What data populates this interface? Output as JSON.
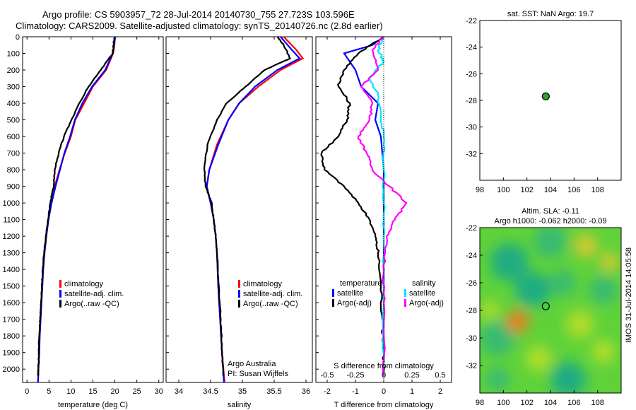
{
  "header": {
    "title_line1": "Argo profile: CS 5903957_72 28-Jul-2014 20140730_755 27.723S 103.596E",
    "title_line2": "Climatology: CARS2009. Satellite-adjusted climatology: synTS_20140726.nc (2.8d earlier)"
  },
  "footer": {
    "stamp": "IMOS 31-Jul-2014 14:05:58"
  },
  "colors": {
    "climatology": "#ff0000",
    "satellite": "#0000ff",
    "argo": "#000000",
    "sat_salinity": "#00e5ff",
    "argo_salinity": "#ff00ff"
  },
  "chart_data": [
    {
      "id": "temperature",
      "type": "line",
      "xlabel": "temperature (deg C)",
      "ylim": [
        2080,
        0
      ],
      "xlim": [
        -1,
        31
      ],
      "xticks": [
        0,
        5,
        10,
        15,
        20,
        25,
        30
      ],
      "yticks": [
        0,
        100,
        200,
        300,
        400,
        500,
        600,
        700,
        800,
        900,
        1000,
        1100,
        1200,
        1300,
        1400,
        1500,
        1600,
        1700,
        1800,
        1900,
        2000
      ],
      "legend": [
        "climatology",
        "satellite-adj. clim.",
        "Argo(..raw -QC)"
      ],
      "series": [
        {
          "name": "climatology",
          "color": "red",
          "points": [
            [
              20,
              0
            ],
            [
              19.9,
              50
            ],
            [
              19.6,
              100
            ],
            [
              18,
              200
            ],
            [
              15,
              300
            ],
            [
              13,
              400
            ],
            [
              11,
              500
            ],
            [
              10,
              600
            ],
            [
              8.6,
              700
            ],
            [
              7.4,
              800
            ],
            [
              6.3,
              900
            ],
            [
              5.4,
              1000
            ],
            [
              4.8,
              1100
            ],
            [
              4.3,
              1200
            ],
            [
              3.9,
              1300
            ],
            [
              3.6,
              1400
            ],
            [
              3.4,
              1500
            ],
            [
              3.2,
              1600
            ],
            [
              3,
              1700
            ],
            [
              2.8,
              1800
            ],
            [
              2.7,
              1900
            ],
            [
              2.6,
              2000
            ],
            [
              2.5,
              2080
            ]
          ]
        },
        {
          "name": "satellite-adj. clim.",
          "color": "blue",
          "points": [
            [
              20.1,
              0
            ],
            [
              19.8,
              50
            ],
            [
              19.5,
              100
            ],
            [
              17.8,
              200
            ],
            [
              14.8,
              300
            ],
            [
              12.6,
              400
            ],
            [
              10.9,
              500
            ],
            [
              9.8,
              600
            ],
            [
              8.5,
              700
            ],
            [
              7.5,
              800
            ],
            [
              6.5,
              900
            ],
            [
              5.6,
              1000
            ],
            [
              4.9,
              1100
            ],
            [
              4.4,
              1200
            ],
            [
              4,
              1300
            ],
            [
              3.7,
              1400
            ],
            [
              3.5,
              1500
            ],
            [
              3.3,
              1600
            ],
            [
              3.1,
              1700
            ],
            [
              2.9,
              1800
            ],
            [
              2.8,
              1900
            ],
            [
              2.6,
              2000
            ],
            [
              2.5,
              2080
            ]
          ]
        },
        {
          "name": "Argo(..raw -QC)",
          "color": "black",
          "points": [
            [
              19.9,
              0
            ],
            [
              19.7,
              50
            ],
            [
              19.5,
              100
            ],
            [
              16.8,
              200
            ],
            [
              14,
              300
            ],
            [
              11.9,
              400
            ],
            [
              10.1,
              500
            ],
            [
              8.4,
              600
            ],
            [
              7.2,
              700
            ],
            [
              6.3,
              800
            ],
            [
              6.1,
              900
            ],
            [
              5.3,
              1000
            ],
            [
              4.8,
              1100
            ],
            [
              4.3,
              1200
            ],
            [
              3.9,
              1300
            ],
            [
              3.6,
              1400
            ],
            [
              3.4,
              1500
            ],
            [
              3.2,
              1600
            ],
            [
              3,
              1700
            ],
            [
              2.8,
              1800
            ],
            [
              2.7,
              1900
            ],
            [
              2.6,
              2000
            ],
            [
              2.5,
              2040
            ]
          ]
        }
      ]
    },
    {
      "id": "salinity",
      "type": "line",
      "xlabel": "salinity",
      "ylim": [
        2080,
        0
      ],
      "xlim": [
        33.8,
        36.1
      ],
      "xticks": [
        34,
        34.5,
        35,
        35.5,
        36
      ],
      "legend": [
        "climatology",
        "satellite-adj. clim.",
        "Argo(..raw -QC)"
      ],
      "annotation": [
        "Argo Australia",
        "PI: Susan Wijffels"
      ],
      "series": [
        {
          "name": "climatology",
          "color": "red",
          "points": [
            [
              35.65,
              0
            ],
            [
              35.85,
              80
            ],
            [
              35.95,
              130
            ],
            [
              35.6,
              200
            ],
            [
              35.25,
              300
            ],
            [
              34.95,
              400
            ],
            [
              34.78,
              500
            ],
            [
              34.6,
              650
            ],
            [
              34.48,
              800
            ],
            [
              34.44,
              900
            ],
            [
              34.5,
              1000
            ],
            [
              34.55,
              1100
            ],
            [
              34.58,
              1200
            ],
            [
              34.6,
              1300
            ],
            [
              34.62,
              1500
            ],
            [
              34.65,
              1700
            ],
            [
              34.68,
              1900
            ],
            [
              34.72,
              2080
            ]
          ]
        },
        {
          "name": "satellite-adj. clim.",
          "color": "blue",
          "points": [
            [
              35.6,
              0
            ],
            [
              35.78,
              80
            ],
            [
              35.9,
              130
            ],
            [
              35.55,
              200
            ],
            [
              35.2,
              300
            ],
            [
              34.95,
              400
            ],
            [
              34.78,
              500
            ],
            [
              34.62,
              650
            ],
            [
              34.48,
              800
            ],
            [
              34.44,
              900
            ],
            [
              34.5,
              1000
            ],
            [
              34.55,
              1100
            ],
            [
              34.58,
              1200
            ],
            [
              34.6,
              1300
            ],
            [
              34.62,
              1500
            ],
            [
              34.65,
              1700
            ],
            [
              34.68,
              1900
            ],
            [
              34.71,
              2080
            ]
          ]
        },
        {
          "name": "Argo(..raw -QC)",
          "color": "black",
          "points": [
            [
              35.55,
              0
            ],
            [
              35.65,
              50
            ],
            [
              35.75,
              130
            ],
            [
              35.35,
              200
            ],
            [
              35.05,
              300
            ],
            [
              34.75,
              400
            ],
            [
              34.6,
              500
            ],
            [
              34.45,
              650
            ],
            [
              34.4,
              800
            ],
            [
              34.42,
              900
            ],
            [
              34.52,
              1000
            ],
            [
              34.55,
              1100
            ],
            [
              34.58,
              1200
            ],
            [
              34.6,
              1300
            ],
            [
              34.63,
              1500
            ],
            [
              34.66,
              1700
            ],
            [
              34.68,
              1900
            ],
            [
              34.7,
              2040
            ]
          ]
        }
      ]
    },
    {
      "id": "difference",
      "type": "line",
      "xlabel_top": "S difference from climatology",
      "xticks_top": [
        "-0.5",
        "-0.25",
        "0",
        "0.25",
        "0.5"
      ],
      "xlabel": "T difference from climatology",
      "xlim": [
        -2.4,
        2.4
      ],
      "xticks": [
        -2,
        -1,
        0,
        1,
        2
      ],
      "legend_left_title": "temperature",
      "legend_right_title": "salinity",
      "legend": [
        "satellite",
        "Argo(-adj)",
        "satellite",
        "Argo(-adj)"
      ],
      "series": [
        {
          "name": "T satellite",
          "color": "blue",
          "points": [
            [
              0,
              0
            ],
            [
              -0.4,
              50
            ],
            [
              -1.4,
              100
            ],
            [
              -1,
              200
            ],
            [
              -0.8,
              300
            ],
            [
              -0.2,
              400
            ],
            [
              -0.3,
              500
            ],
            [
              -0.1,
              600
            ],
            [
              0,
              800
            ],
            [
              0,
              1000
            ],
            [
              0,
              1200
            ],
            [
              0,
              1600
            ],
            [
              0,
              2040
            ]
          ]
        },
        {
          "name": "T Argo(-adj)",
          "color": "black",
          "points": [
            [
              0,
              0
            ],
            [
              -0.9,
              100
            ],
            [
              -1.4,
              200
            ],
            [
              -1.6,
              300
            ],
            [
              -1.2,
              400
            ],
            [
              -1.3,
              500
            ],
            [
              -1.6,
              600
            ],
            [
              -2.2,
              700
            ],
            [
              -2.1,
              800
            ],
            [
              -1.4,
              900
            ],
            [
              -0.9,
              1000
            ],
            [
              -0.5,
              1100
            ],
            [
              -0.3,
              1200
            ],
            [
              -0.2,
              1300
            ],
            [
              -0.1,
              1500
            ],
            [
              -0.05,
              1700
            ],
            [
              0,
              1900
            ],
            [
              0,
              2040
            ]
          ]
        },
        {
          "name": "S satellite",
          "color": "cyan",
          "points": [
            [
              0,
              0
            ],
            [
              -0.2,
              80
            ],
            [
              0,
              150
            ],
            [
              -0.5,
              250
            ],
            [
              -0.2,
              350
            ],
            [
              -0.1,
              500
            ],
            [
              0,
              600
            ],
            [
              0,
              800
            ],
            [
              0,
              1000
            ],
            [
              0,
              1200
            ],
            [
              0,
              1600
            ],
            [
              0,
              2040
            ]
          ]
        },
        {
          "name": "S Argo(-adj)",
          "color": "magenta",
          "points": [
            [
              0,
              0
            ],
            [
              -0.4,
              80
            ],
            [
              -0.2,
              200
            ],
            [
              -0.8,
              300
            ],
            [
              -0.4,
              400
            ],
            [
              -0.5,
              500
            ],
            [
              -0.9,
              600
            ],
            [
              -0.6,
              700
            ],
            [
              -0.4,
              800
            ],
            [
              0.2,
              900
            ],
            [
              0.8,
              1000
            ],
            [
              0.4,
              1100
            ],
            [
              0.1,
              1200
            ],
            [
              0,
              1400
            ],
            [
              0,
              1600
            ],
            [
              0,
              2040
            ]
          ]
        }
      ]
    },
    {
      "id": "sst_map",
      "type": "scatter",
      "title": "sat. SST: NaN Argo: 19.7",
      "xlim": [
        98,
        110
      ],
      "ylim": [
        -34,
        -22
      ],
      "xticks": [
        98,
        100,
        102,
        104,
        106,
        108
      ],
      "yticks": [
        -22,
        -24,
        -26,
        -28,
        -30,
        -32
      ],
      "points": [
        [
          103.6,
          -27.7
        ]
      ]
    },
    {
      "id": "sla_map",
      "type": "heatmap",
      "title_line1": "Altim. SLA: -0.11",
      "title_line2": "Argo h1000: -0.062 h2000: -0.09",
      "xlim": [
        98,
        110
      ],
      "ylim": [
        -34,
        -22
      ],
      "xticks": [
        98,
        100,
        102,
        104,
        106,
        108
      ],
      "yticks": [
        -22,
        -24,
        -26,
        -28,
        -30,
        -32
      ],
      "points": [
        [
          103.6,
          -27.7
        ]
      ],
      "field": [
        {
          "x": 100.5,
          "y": -24.5,
          "v": -0.6,
          "r": 1.6
        },
        {
          "x": 104,
          "y": -23,
          "v": -0.5,
          "r": 1.4
        },
        {
          "x": 102.5,
          "y": -26.5,
          "v": -0.7,
          "r": 1.5
        },
        {
          "x": 99.5,
          "y": -30,
          "v": -0.5,
          "r": 1.5
        },
        {
          "x": 105.5,
          "y": -33,
          "v": -0.6,
          "r": 1.5
        },
        {
          "x": 108.5,
          "y": -26.5,
          "v": -0.4,
          "r": 1.2
        },
        {
          "x": 101.2,
          "y": -28.8,
          "v": 0.9,
          "r": 1
        },
        {
          "x": 107,
          "y": -23.3,
          "v": 0.6,
          "r": 1
        },
        {
          "x": 109,
          "y": -24.5,
          "v": 0.7,
          "r": 0.8
        },
        {
          "x": 103,
          "y": -31.5,
          "v": 0.5,
          "r": 1.1
        },
        {
          "x": 106.5,
          "y": -29,
          "v": 0.4,
          "r": 1.2
        },
        {
          "x": 98.8,
          "y": -28,
          "v": 0.5,
          "r": 0.8
        },
        {
          "x": 99.5,
          "y": -33,
          "v": -0.5,
          "r": 1
        },
        {
          "x": 108.5,
          "y": -31,
          "v": 0.3,
          "r": 1
        },
        {
          "x": 105,
          "y": -26,
          "v": -0.5,
          "r": 1.1
        }
      ]
    }
  ]
}
